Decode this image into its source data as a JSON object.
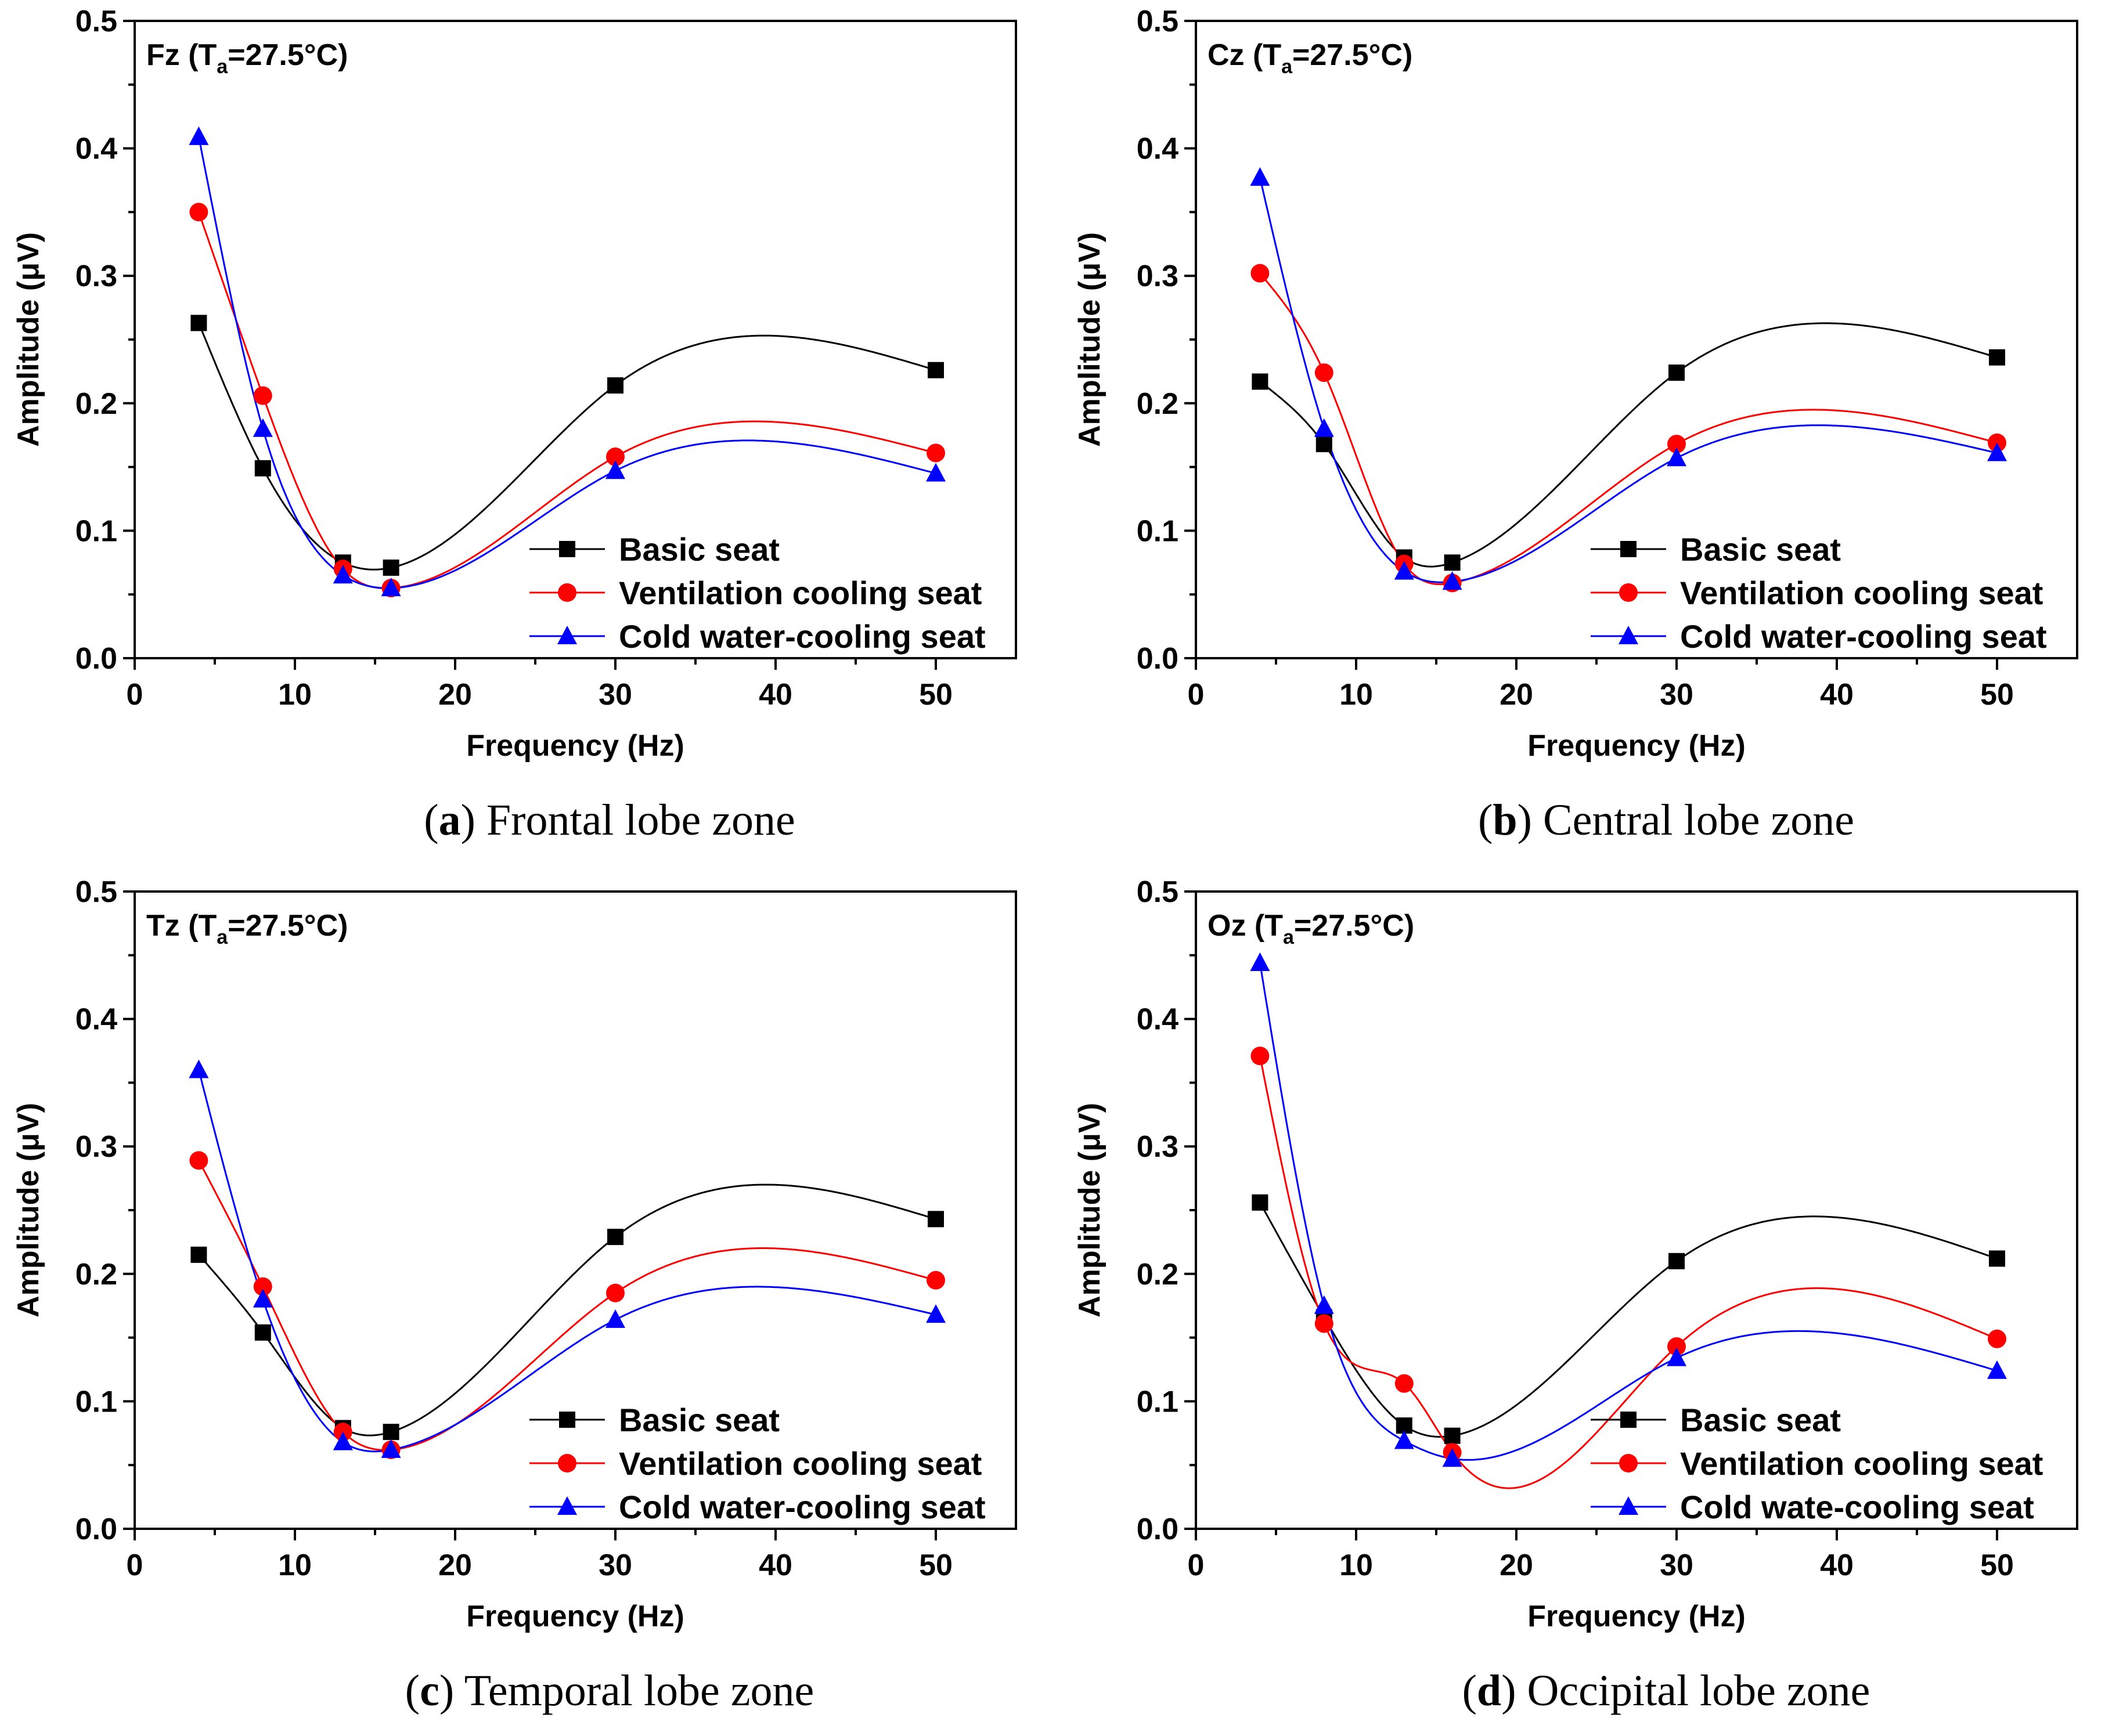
{
  "figure": {
    "panels": [
      {
        "id": "a",
        "caption_letter": "a",
        "caption_text": "Frontal lobe zone",
        "chart_data": {
          "type": "line",
          "title": "",
          "label_main": "Fz (T",
          "label_sub": "a",
          "label_rest": "=27.5°C)",
          "xlabel": "Frequency (Hz)",
          "ylabel": "Amplitude (μV)",
          "xlim": [
            0,
            55
          ],
          "ylim": [
            0,
            0.5
          ],
          "xticks": [
            "0",
            "10",
            "20",
            "30",
            "40",
            "50"
          ],
          "yticks": [
            "0.0",
            "0.1",
            "0.2",
            "0.3",
            "0.4",
            "0.5"
          ],
          "x": [
            4,
            8,
            13,
            16,
            30,
            50
          ],
          "series": [
            {
              "name": "Basic seat",
              "color": "#000000",
              "marker": "square",
              "values": [
                0.263,
                0.149,
                0.075,
                0.071,
                0.214,
                0.226
              ]
            },
            {
              "name": "Ventilation cooling seat",
              "color": "#ff0000",
              "marker": "circle",
              "values": [
                0.35,
                0.206,
                0.07,
                0.055,
                0.158,
                0.161
              ]
            },
            {
              "name": "Cold water-cooling seat",
              "color": "#0000ff",
              "marker": "triangle",
              "values": [
                0.409,
                0.18,
                0.065,
                0.055,
                0.147,
                0.145
              ]
            }
          ]
        }
      },
      {
        "id": "b",
        "caption_letter": "b",
        "caption_text": "Central lobe zone",
        "chart_data": {
          "type": "line",
          "title": "",
          "label_main": "Cz (T",
          "label_sub": "a",
          "label_rest": "=27.5°C)",
          "xlabel": "Frequency (Hz)",
          "ylabel": "Amplitude (μV)",
          "xlim": [
            0,
            55
          ],
          "ylim": [
            0,
            0.5
          ],
          "xticks": [
            "0",
            "10",
            "20",
            "30",
            "40",
            "50"
          ],
          "yticks": [
            "0.0",
            "0.1",
            "0.2",
            "0.3",
            "0.4",
            "0.5"
          ],
          "x": [
            4,
            8,
            13,
            16,
            30,
            50
          ],
          "series": [
            {
              "name": "Basic seat",
              "color": "#000000",
              "marker": "square",
              "values": [
                0.217,
                0.168,
                0.079,
                0.075,
                0.224,
                0.236
              ]
            },
            {
              "name": "Ventilation cooling seat",
              "color": "#ff0000",
              "marker": "circle",
              "values": [
                0.302,
                0.224,
                0.074,
                0.059,
                0.168,
                0.169
              ]
            },
            {
              "name": "Cold water-cooling seat",
              "color": "#0000ff",
              "marker": "triangle",
              "values": [
                0.377,
                0.18,
                0.068,
                0.06,
                0.157,
                0.161
              ]
            }
          ]
        }
      },
      {
        "id": "c",
        "caption_letter": "c",
        "caption_text": "Temporal lobe zone",
        "chart_data": {
          "type": "line",
          "title": "",
          "label_main": "Tz (T",
          "label_sub": "a",
          "label_rest": "=27.5°C)",
          "xlabel": "Frequency (Hz)",
          "ylabel": "Amplitude (μV)",
          "xlim": [
            0,
            55
          ],
          "ylim": [
            0,
            0.5
          ],
          "xticks": [
            "0",
            "10",
            "20",
            "30",
            "40",
            "50"
          ],
          "yticks": [
            "0.0",
            "0.1",
            "0.2",
            "0.3",
            "0.4",
            "0.5"
          ],
          "x": [
            4,
            8,
            13,
            16,
            30,
            50
          ],
          "series": [
            {
              "name": "Basic seat",
              "color": "#000000",
              "marker": "square",
              "values": [
                0.215,
                0.154,
                0.079,
                0.076,
                0.229,
                0.243
              ]
            },
            {
              "name": "Ventilation cooling seat",
              "color": "#ff0000",
              "marker": "circle",
              "values": [
                0.289,
                0.19,
                0.076,
                0.062,
                0.185,
                0.195
              ]
            },
            {
              "name": "Cold water-cooling seat",
              "color": "#0000ff",
              "marker": "triangle",
              "values": [
                0.36,
                0.18,
                0.068,
                0.062,
                0.164,
                0.168
              ]
            }
          ]
        }
      },
      {
        "id": "d",
        "caption_letter": "d",
        "caption_text": "Occipital lobe zone",
        "chart_data": {
          "type": "line",
          "title": "",
          "label_main": "Oz (T",
          "label_sub": "a",
          "label_rest": "=27.5°C)",
          "xlabel": "Frequency (Hz)",
          "ylabel": "Amplitude (μV)",
          "xlim": [
            0,
            55
          ],
          "ylim": [
            0,
            0.5
          ],
          "xticks": [
            "0",
            "10",
            "20",
            "30",
            "40",
            "50"
          ],
          "yticks": [
            "0.0",
            "0.1",
            "0.2",
            "0.3",
            "0.4",
            "0.5"
          ],
          "x": [
            4,
            8,
            13,
            16,
            30,
            50
          ],
          "series": [
            {
              "name": "Basic seat",
              "color": "#000000",
              "marker": "square",
              "values": [
                0.256,
                0.166,
                0.081,
                0.073,
                0.21,
                0.212
              ]
            },
            {
              "name": "Ventilation cooling seat",
              "color": "#ff0000",
              "marker": "circle",
              "values": [
                0.371,
                0.161,
                0.114,
                0.06,
                0.143,
                0.149
              ]
            },
            {
              "name": "Cold wate-cooling seat",
              "color": "#0000ff",
              "marker": "triangle",
              "values": [
                0.444,
                0.175,
                0.069,
                0.055,
                0.134,
                0.124
              ]
            }
          ]
        }
      }
    ]
  }
}
